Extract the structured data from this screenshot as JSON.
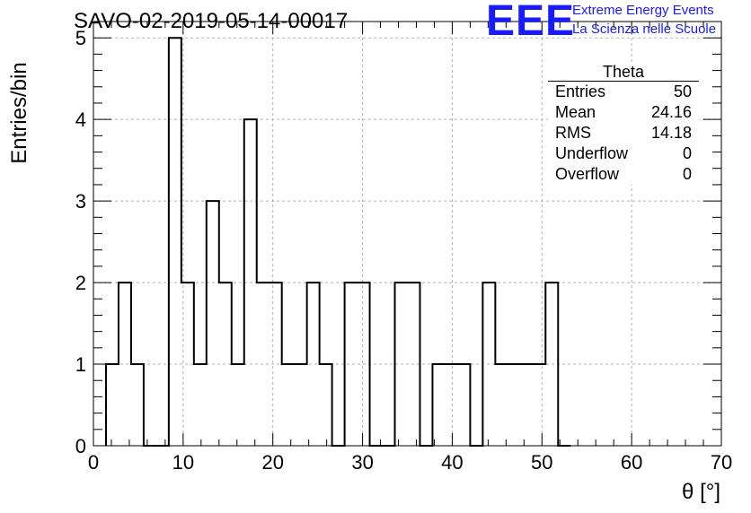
{
  "chart_data": {
    "type": "bar",
    "title": "SAVO-02-2019-05-14-00017",
    "xlabel": "θ [°]",
    "ylabel": "Entries/bin",
    "xlim": [
      0,
      70
    ],
    "ylim": [
      0,
      5.2
    ],
    "x_ticks": [
      0,
      10,
      20,
      30,
      40,
      50,
      60,
      70
    ],
    "y_ticks": [
      0,
      1,
      2,
      3,
      4,
      5
    ],
    "grid": true,
    "bin_width": 1.4,
    "bin_edges_start": 1.4,
    "values": [
      1,
      2,
      1,
      0,
      0,
      5,
      2,
      1,
      3,
      2,
      1,
      4,
      2,
      2,
      1,
      1,
      2,
      1,
      0,
      2,
      2,
      0,
      0,
      2,
      2,
      0,
      1,
      1,
      1,
      0,
      2,
      1,
      1,
      1,
      1,
      2,
      0
    ]
  },
  "stats_box": {
    "title": "Theta",
    "rows": [
      {
        "label": "Entries",
        "value": "50"
      },
      {
        "label": "Mean",
        "value": "24.16"
      },
      {
        "label": "RMS",
        "value": "14.18"
      },
      {
        "label": "Underflow",
        "value": "0"
      },
      {
        "label": "Overflow",
        "value": "0"
      }
    ]
  },
  "logo": {
    "mark": "EEE",
    "line1": "Extreme Energy Events",
    "line2": "La Scienza nelle Scuole",
    "color": "#1a1aff"
  }
}
